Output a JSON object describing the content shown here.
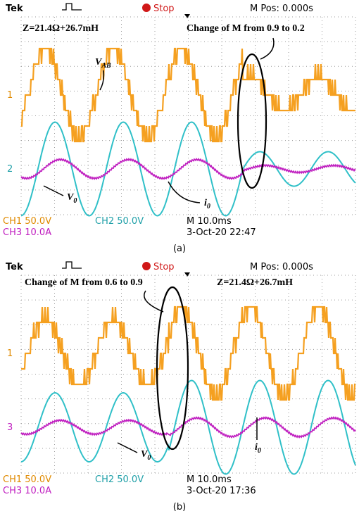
{
  "panels": [
    {
      "header": {
        "brand": "Tek",
        "status": "Stop",
        "position": "M Pos: 0.000s"
      },
      "annotations": {
        "impedance": "Z=21.4Ω+26.7mH",
        "change": "Change of M from 0.9 to 0.2",
        "v_ab": {
          "main": "V",
          "sub": "AB"
        },
        "v_0": {
          "main": "V",
          "sub": "0"
        },
        "i_0": {
          "main": "i",
          "sub": "0"
        }
      },
      "channel_markers": [
        "1",
        "2"
      ],
      "footer": {
        "ch1": "CH1  50.0V",
        "ch2": "CH2  50.0V",
        "timebase": "M 10.0ms",
        "ch3": "CH3  10.0A",
        "timestamp": "3-Oct-20 22:47"
      },
      "caption": "(a)"
    },
    {
      "header": {
        "brand": "Tek",
        "status": "Stop",
        "position": "M Pos: 0.000s"
      },
      "annotations": {
        "impedance": "Z=21.4Ω+26.7mH",
        "change": "Change of M from 0.6 to 0.9",
        "v_0": {
          "main": "V",
          "sub": "0"
        },
        "i_0": {
          "main": "i",
          "sub": "0"
        }
      },
      "channel_markers": [
        "1",
        "3"
      ],
      "footer": {
        "ch1": "CH1  50.0V",
        "ch2": "CH2  50.0V",
        "timebase": "M 10.0ms",
        "ch3": "CH3  10.0A",
        "timestamp": "3-Oct-20 17:36"
      },
      "caption": "(b)"
    }
  ]
}
